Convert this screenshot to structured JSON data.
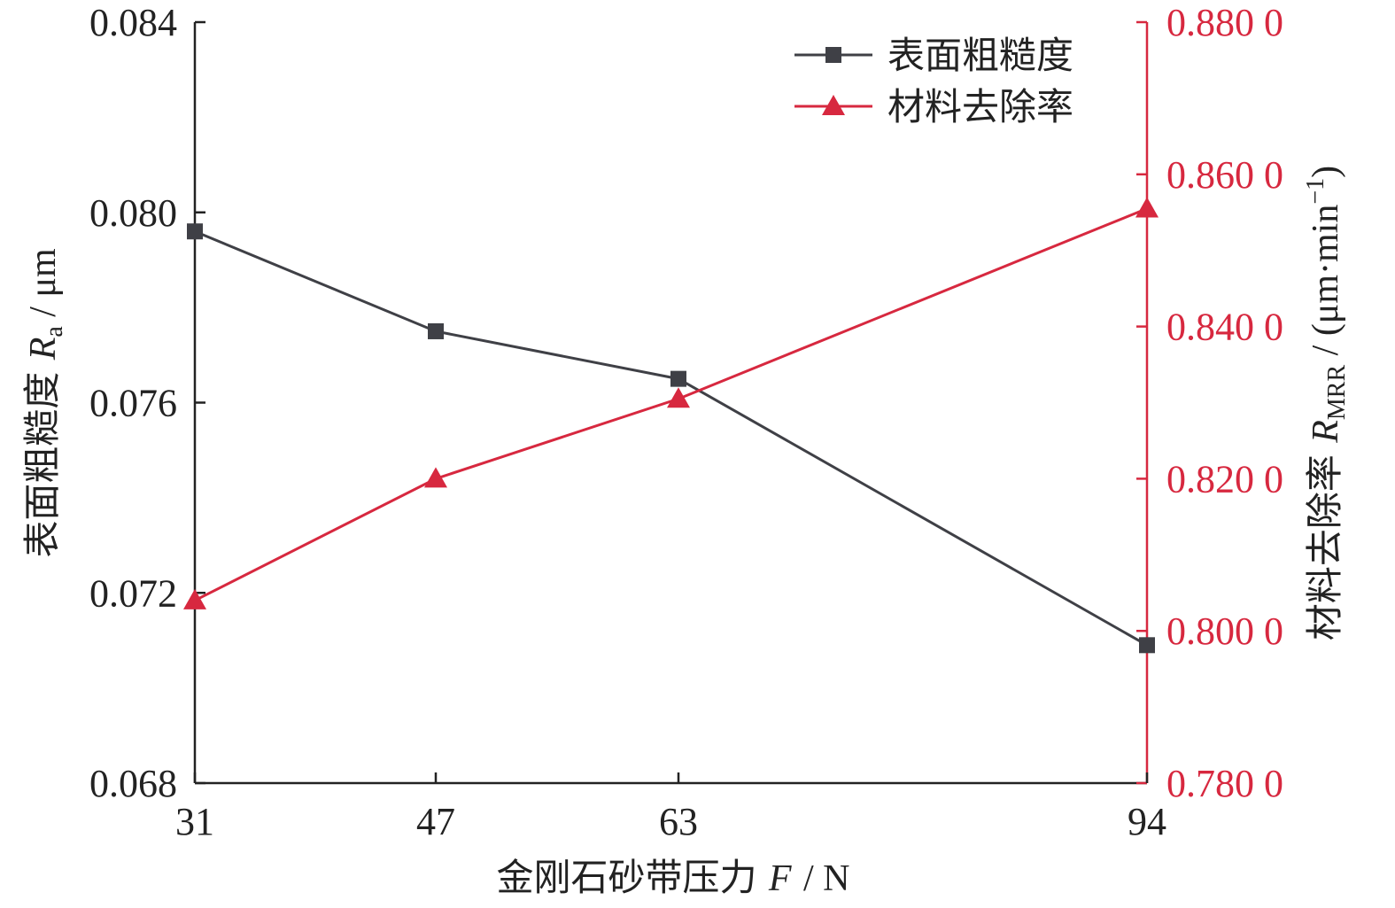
{
  "chart_data": {
    "type": "line",
    "x": [
      31,
      47,
      63,
      94
    ],
    "x_tick_labels": [
      "31",
      "47",
      "63",
      "94"
    ],
    "xlabel": {
      "text": "金刚石砂带压力",
      "symbol": "F",
      "unit": "/ N"
    },
    "ylabel_left": {
      "text": "表面粗糙度",
      "symbol": "R",
      "subscript": "a",
      "unit": "/ μm"
    },
    "ylabel_right": {
      "text": "材料去除率",
      "symbol": "R",
      "subscript": "MRR",
      "unit": "/ (μm·min",
      "sup": "−1",
      "close": ")"
    },
    "ylim_left": [
      0.068,
      0.084
    ],
    "ylim_right": [
      0.78,
      0.88
    ],
    "y_left_ticks": [
      0.068,
      0.072,
      0.076,
      0.08,
      0.084
    ],
    "y_left_tick_labels": [
      "0.068",
      "0.072",
      "0.076",
      "0.080",
      "0.084"
    ],
    "y_right_ticks": [
      0.78,
      0.8,
      0.82,
      0.84,
      0.86,
      0.88
    ],
    "y_right_tick_labels": [
      "0.780 0",
      "0.800 0",
      "0.820 0",
      "0.840 0",
      "0.860 0",
      "0.880 0"
    ],
    "legend_position": "top-right",
    "grid": false,
    "series": [
      {
        "name": "表面粗糙度",
        "axis": "left",
        "marker": "square",
        "color": "#3f4046",
        "values": [
          0.0796,
          0.0775,
          0.0765,
          0.0709
        ]
      },
      {
        "name": "材料去除率",
        "axis": "right",
        "marker": "triangle",
        "color": "#d7283f",
        "values": [
          0.804,
          0.82,
          0.8305,
          0.8555
        ]
      }
    ]
  }
}
